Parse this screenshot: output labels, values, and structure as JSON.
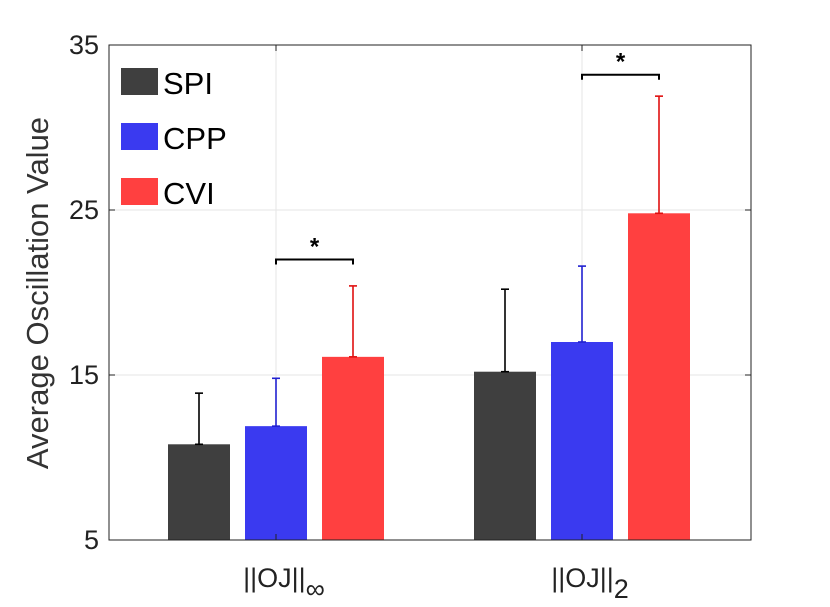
{
  "chart_data": {
    "type": "bar",
    "title": "",
    "xlabel": "",
    "ylabel": "Average Oscillation Value",
    "ylim": [
      5,
      35
    ],
    "yticks": [
      5,
      15,
      25,
      35
    ],
    "grid": true,
    "legend_position": "top-left",
    "categories": [
      {
        "base": "||OJ||",
        "subscript": "∞"
      },
      {
        "base": "||OJ||",
        "subscript": "2"
      }
    ],
    "series": [
      {
        "name": "SPI",
        "color": "#3f3f3f",
        "values": [
          10.8,
          15.2
        ],
        "errors": [
          3.1,
          5.0
        ]
      },
      {
        "name": "CPP",
        "color": "#3a3af0",
        "values": [
          11.9,
          17.0
        ],
        "errors": [
          2.9,
          4.6
        ]
      },
      {
        "name": "CVI",
        "color": "#ff4040",
        "values": [
          16.1,
          24.8
        ],
        "errors": [
          4.3,
          7.1
        ]
      }
    ],
    "significance": [
      {
        "category": 0,
        "from": 1,
        "to": 2,
        "y": 22.0,
        "label": "*"
      },
      {
        "category": 1,
        "from": 1,
        "to": 2,
        "y": 33.2,
        "label": "*"
      }
    ]
  }
}
